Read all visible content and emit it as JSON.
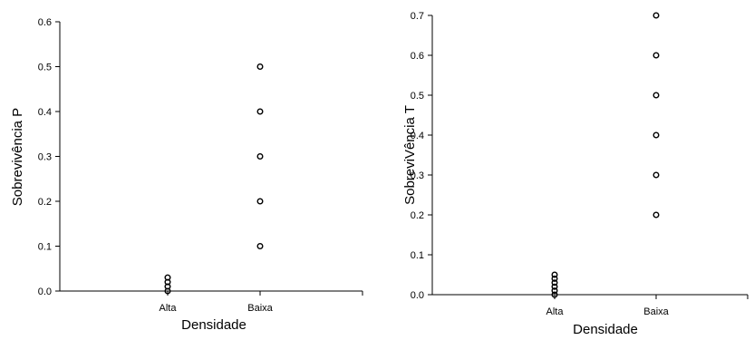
{
  "chart_data": [
    {
      "type": "scatter",
      "xlabel": "Densidade",
      "ylabel": "Sobrevivência P",
      "categories": [
        "Alta",
        "Baixa"
      ],
      "ylim": [
        0.0,
        0.6
      ],
      "yticks": [
        "0.0",
        "0.1",
        "0.2",
        "0.3",
        "0.4",
        "0.5",
        "0.6"
      ],
      "grid": false,
      "marker": "open-circle",
      "points": [
        {
          "x": "Alta",
          "y": 0.0
        },
        {
          "x": "Alta",
          "y": 0.01
        },
        {
          "x": "Alta",
          "y": 0.02
        },
        {
          "x": "Alta",
          "y": 0.03
        },
        {
          "x": "Baixa",
          "y": 0.1
        },
        {
          "x": "Baixa",
          "y": 0.2
        },
        {
          "x": "Baixa",
          "y": 0.3
        },
        {
          "x": "Baixa",
          "y": 0.4
        },
        {
          "x": "Baixa",
          "y": 0.5
        }
      ]
    },
    {
      "type": "scatter",
      "xlabel": "Densidade",
      "ylabel": "SobreviVência T",
      "categories": [
        "Alta",
        "Baixa"
      ],
      "ylim": [
        0.0,
        0.7
      ],
      "yticks": [
        "0.0",
        "0.1",
        "0.2",
        "0.3",
        "0.4",
        "0.5",
        "0.6",
        "0.7"
      ],
      "grid": false,
      "marker": "open-circle",
      "points": [
        {
          "x": "Alta",
          "y": 0.0
        },
        {
          "x": "Alta",
          "y": 0.01
        },
        {
          "x": "Alta",
          "y": 0.02
        },
        {
          "x": "Alta",
          "y": 0.03
        },
        {
          "x": "Alta",
          "y": 0.04
        },
        {
          "x": "Alta",
          "y": 0.05
        },
        {
          "x": "Baixa",
          "y": 0.2
        },
        {
          "x": "Baixa",
          "y": 0.3
        },
        {
          "x": "Baixa",
          "y": 0.4
        },
        {
          "x": "Baixa",
          "y": 0.5
        },
        {
          "x": "Baixa",
          "y": 0.6
        },
        {
          "x": "Baixa",
          "y": 0.7
        }
      ]
    }
  ],
  "style": {
    "axis_color": "#000000",
    "marker_color": "#000000",
    "background": "#ffffff"
  }
}
